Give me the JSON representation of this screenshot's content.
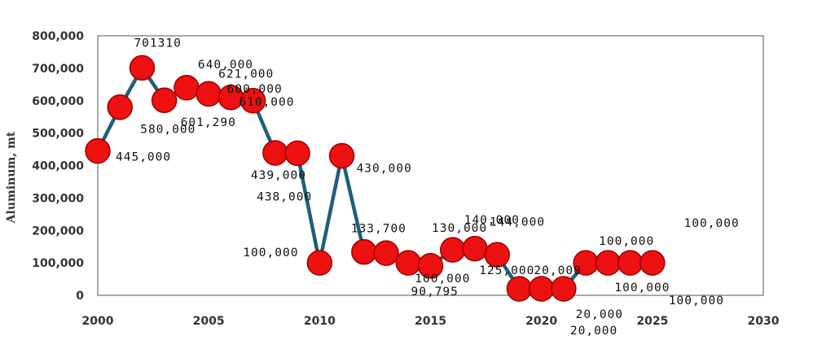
{
  "chart_data": {
    "type": "line",
    "ylabel": "Aluminum, mt",
    "xlim": [
      2000,
      2030
    ],
    "ylim": [
      0,
      800000
    ],
    "xticks": [
      "2000",
      "2005",
      "2010",
      "2015",
      "2020",
      "2025",
      "2030"
    ],
    "yticks": [
      "0",
      "100,000",
      "200,000",
      "300,000",
      "400,000",
      "500,000",
      "600,000",
      "700,000",
      "800,000"
    ],
    "grid": false,
    "legend": "none",
    "colors": {
      "line": "#1f5f7a",
      "marker": "#ee1111",
      "marker_edge": "#9a0000"
    },
    "x": [
      2000,
      2001,
      2002,
      2003,
      2004,
      2005,
      2006,
      2007,
      2008,
      2009,
      2010,
      2011,
      2012,
      2013,
      2014,
      2015,
      2016,
      2017,
      2018,
      2019,
      2020,
      2021,
      2022,
      2023,
      2024,
      2025
    ],
    "values": [
      445000,
      580000,
      701310,
      601290,
      640000,
      621000,
      610000,
      600000,
      439000,
      438000,
      100000,
      430000,
      133700,
      130000,
      100000,
      90795,
      140000,
      144000,
      125000,
      20000,
      20000,
      20000,
      100000,
      100000,
      100000,
      100000
    ],
    "labels": [
      "445,000",
      "580,000",
      "701310",
      "601,290",
      "640,000",
      "621,000",
      "610,000",
      "600,000",
      "439,000",
      "438,000",
      "100,000",
      "430,000",
      "133,700",
      "130,000",
      "100,000",
      "90,795",
      "140,000",
      "144,000",
      "125,000",
      "20,000",
      "20,000",
      "20,000",
      "100,000",
      "100,000",
      "100,000",
      "100,000"
    ]
  }
}
